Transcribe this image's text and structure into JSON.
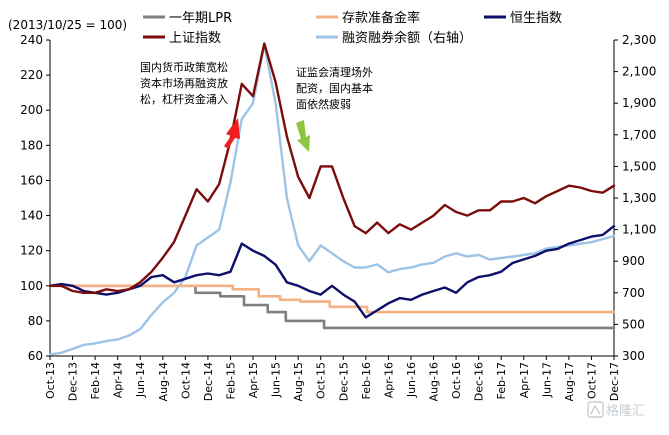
{
  "chart_data": {
    "type": "line",
    "base_note": "(2013/10/25 = 100)",
    "annotations": [
      {
        "lines": [
          "国内货币政策宽松",
          "资本市场再融资放",
          "松，杠杆资金涌入"
        ],
        "arrow": "up",
        "color": "#f01e1e"
      },
      {
        "lines": [
          "证监会清理场外",
          "配资，国内基本",
          "面依然疲弱"
        ],
        "arrow": "down",
        "color": "#8cc63e"
      }
    ],
    "y_left": {
      "min": 60,
      "max": 240,
      "ticks": [
        60,
        80,
        100,
        120,
        140,
        160,
        180,
        200,
        220,
        240
      ]
    },
    "y_right": {
      "min": 300,
      "max": 2300,
      "ticks": [
        "300",
        "500",
        "700",
        "900",
        "1,100",
        "1,300",
        "1,500",
        "1,700",
        "1,900",
        "2,100",
        "2,300"
      ]
    },
    "x_labels": [
      "Oct-13",
      "Dec-13",
      "Feb-14",
      "Apr-14",
      "Jun-14",
      "Aug-14",
      "Oct-14",
      "Dec-14",
      "Feb-15",
      "Apr-15",
      "Jun-15",
      "Aug-15",
      "Oct-15",
      "Dec-15",
      "Feb-16",
      "Apr-16",
      "Jun-16",
      "Aug-16",
      "Oct-16",
      "Dec-16",
      "Feb-17",
      "Apr-17",
      "Jun-17",
      "Aug-17",
      "Oct-17",
      "Dec-17"
    ],
    "series": [
      {
        "name": "一年期LPR",
        "color": "#7f7f7f",
        "axis": "left",
        "step": true,
        "points": [
          [
            0,
            100
          ],
          [
            12.3,
            100
          ],
          [
            12.9,
            96
          ],
          [
            14.5,
            96
          ],
          [
            15.1,
            94
          ],
          [
            16.7,
            94
          ],
          [
            17.2,
            89
          ],
          [
            18.6,
            89
          ],
          [
            19.3,
            85
          ],
          [
            20.2,
            85
          ],
          [
            20.9,
            80
          ],
          [
            23.7,
            80
          ],
          [
            24.3,
            76
          ],
          [
            50,
            76
          ]
        ]
      },
      {
        "name": "存款准备金率",
        "color": "#f4b183",
        "axis": "left",
        "step": true,
        "points": [
          [
            0,
            100
          ],
          [
            15.6,
            100
          ],
          [
            16.2,
            98
          ],
          [
            17.9,
            98
          ],
          [
            18.5,
            94
          ],
          [
            19.8,
            94
          ],
          [
            20.4,
            92
          ],
          [
            21.6,
            92
          ],
          [
            22.2,
            91
          ],
          [
            24.2,
            91
          ],
          [
            24.8,
            88
          ],
          [
            27.5,
            88
          ],
          [
            28.1,
            85
          ],
          [
            50,
            85
          ]
        ]
      },
      {
        "name": "恒生指数",
        "color": "#0d0f6b",
        "axis": "left",
        "step": false,
        "points": [
          [
            0,
            100
          ],
          [
            1,
            101
          ],
          [
            2,
            100
          ],
          [
            3,
            97
          ],
          [
            4,
            96
          ],
          [
            5,
            95
          ],
          [
            6,
            96
          ],
          [
            7,
            98
          ],
          [
            8,
            100
          ],
          [
            9,
            105
          ],
          [
            10,
            106
          ],
          [
            11,
            102
          ],
          [
            12,
            104
          ],
          [
            13,
            106
          ],
          [
            14,
            107
          ],
          [
            15,
            106
          ],
          [
            16,
            108
          ],
          [
            17,
            124
          ],
          [
            18,
            120
          ],
          [
            19,
            117
          ],
          [
            20,
            112
          ],
          [
            21,
            102
          ],
          [
            22,
            100
          ],
          [
            23,
            97
          ],
          [
            24,
            95
          ],
          [
            25,
            100
          ],
          [
            26,
            95
          ],
          [
            27,
            91
          ],
          [
            28,
            82
          ],
          [
            29,
            86
          ],
          [
            30,
            90
          ],
          [
            31,
            93
          ],
          [
            32,
            92
          ],
          [
            33,
            95
          ],
          [
            34,
            97
          ],
          [
            35,
            99
          ],
          [
            36,
            96
          ],
          [
            37,
            102
          ],
          [
            38,
            105
          ],
          [
            39,
            106
          ],
          [
            40,
            108
          ],
          [
            41,
            113
          ],
          [
            42,
            115
          ],
          [
            43,
            117
          ],
          [
            44,
            120
          ],
          [
            45,
            121
          ],
          [
            46,
            124
          ],
          [
            47,
            126
          ],
          [
            48,
            128
          ],
          [
            49,
            129
          ],
          [
            50,
            134
          ]
        ]
      },
      {
        "name": "上证指数",
        "color": "#7b0c0c",
        "axis": "left",
        "step": false,
        "points": [
          [
            0,
            100
          ],
          [
            1,
            100
          ],
          [
            2,
            97
          ],
          [
            3,
            96
          ],
          [
            4,
            96
          ],
          [
            5,
            98
          ],
          [
            6,
            97
          ],
          [
            7,
            98
          ],
          [
            8,
            102
          ],
          [
            9,
            108
          ],
          [
            10,
            116
          ],
          [
            11,
            125
          ],
          [
            12,
            140
          ],
          [
            13,
            155
          ],
          [
            14,
            148
          ],
          [
            15,
            158
          ],
          [
            16,
            183
          ],
          [
            17,
            215
          ],
          [
            18,
            208
          ],
          [
            19,
            238
          ],
          [
            20,
            216
          ],
          [
            21,
            185
          ],
          [
            22,
            162
          ],
          [
            23,
            150
          ],
          [
            24,
            168
          ],
          [
            25,
            168
          ],
          [
            26,
            150
          ],
          [
            27,
            134
          ],
          [
            28,
            130
          ],
          [
            29,
            136
          ],
          [
            30,
            130
          ],
          [
            31,
            135
          ],
          [
            32,
            132
          ],
          [
            33,
            136
          ],
          [
            34,
            140
          ],
          [
            35,
            146
          ],
          [
            36,
            142
          ],
          [
            37,
            140
          ],
          [
            38,
            143
          ],
          [
            39,
            143
          ],
          [
            40,
            148
          ],
          [
            41,
            148
          ],
          [
            42,
            150
          ],
          [
            43,
            147
          ],
          [
            44,
            151
          ],
          [
            45,
            154
          ],
          [
            46,
            157
          ],
          [
            47,
            156
          ],
          [
            48,
            154
          ],
          [
            49,
            153
          ],
          [
            50,
            157
          ]
        ]
      },
      {
        "name": "融资融券余额（右轴）",
        "color": "#9dc3e6",
        "axis": "right",
        "step": false,
        "points": [
          [
            0,
            310
          ],
          [
            1,
            320
          ],
          [
            2,
            345
          ],
          [
            3,
            370
          ],
          [
            4,
            380
          ],
          [
            5,
            395
          ],
          [
            6,
            405
          ],
          [
            7,
            430
          ],
          [
            8,
            470
          ],
          [
            9,
            560
          ],
          [
            10,
            640
          ],
          [
            11,
            700
          ],
          [
            12,
            800
          ],
          [
            13,
            1000
          ],
          [
            14,
            1050
          ],
          [
            15,
            1100
          ],
          [
            16,
            1400
          ],
          [
            17,
            1800
          ],
          [
            18,
            1900
          ],
          [
            19,
            2270
          ],
          [
            20,
            1900
          ],
          [
            21,
            1300
          ],
          [
            22,
            1000
          ],
          [
            23,
            900
          ],
          [
            24,
            1000
          ],
          [
            25,
            950
          ],
          [
            26,
            900
          ],
          [
            27,
            860
          ],
          [
            28,
            860
          ],
          [
            29,
            880
          ],
          [
            30,
            830
          ],
          [
            31,
            850
          ],
          [
            32,
            860
          ],
          [
            33,
            880
          ],
          [
            34,
            890
          ],
          [
            35,
            930
          ],
          [
            36,
            950
          ],
          [
            37,
            930
          ],
          [
            38,
            940
          ],
          [
            39,
            910
          ],
          [
            40,
            920
          ],
          [
            41,
            930
          ],
          [
            42,
            940
          ],
          [
            43,
            950
          ],
          [
            44,
            980
          ],
          [
            45,
            990
          ],
          [
            46,
            1000
          ],
          [
            47,
            1010
          ],
          [
            48,
            1020
          ],
          [
            49,
            1040
          ],
          [
            50,
            1060
          ]
        ]
      }
    ]
  },
  "watermark": "格隆汇"
}
